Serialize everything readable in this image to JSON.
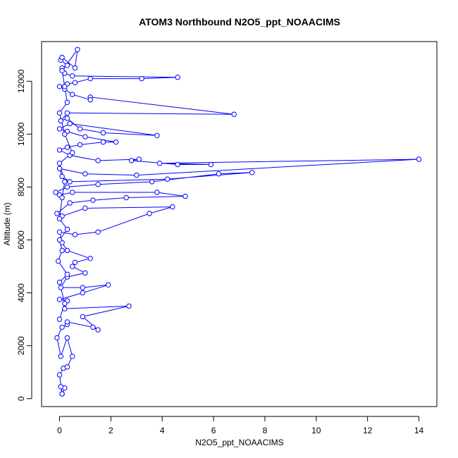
{
  "chart_data": {
    "type": "scatter",
    "title": "ATOM3 Northbound N2O5_ppt_NOAACIMS",
    "xlabel": "N2O5_ppt_NOAACIMS",
    "ylabel": "Altitude (m)",
    "xlim": [
      -0.7,
      14.7
    ],
    "ylim": [
      -300,
      13500
    ],
    "x_ticks": [
      0,
      2,
      4,
      6,
      8,
      10,
      12,
      14
    ],
    "y_ticks": [
      0,
      2000,
      4000,
      6000,
      8000,
      10000,
      12000
    ],
    "x_tick_labels": [
      "0",
      "2",
      "4",
      "6",
      "8",
      "10",
      "12",
      "14"
    ],
    "y_tick_labels": [
      "0",
      "2000",
      "4000",
      "6000",
      "8000",
      "10000",
      "12000"
    ],
    "grid": false,
    "markers": "open-circle",
    "connected": true,
    "color": "#0000ff",
    "series": [
      {
        "values": [
          [
            0.1,
            180
          ],
          [
            0.2,
            400
          ],
          [
            0.05,
            450
          ],
          [
            0.1,
            180
          ],
          [
            0.0,
            900
          ],
          [
            0.15,
            1150
          ],
          [
            0.3,
            1200
          ],
          [
            0.5,
            1600
          ],
          [
            0.3,
            2300
          ],
          [
            0.05,
            1600
          ],
          [
            -0.1,
            2300
          ],
          [
            0.1,
            2700
          ],
          [
            0.3,
            2800
          ],
          [
            0.3,
            2900
          ],
          [
            1.3,
            2700
          ],
          [
            1.5,
            2600
          ],
          [
            0.9,
            3100
          ],
          [
            2.7,
            3500
          ],
          [
            0.2,
            3400
          ],
          [
            0.3,
            3700
          ],
          [
            0.0,
            3750
          ],
          [
            0.9,
            4000
          ],
          [
            1.9,
            4300
          ],
          [
            0.9,
            4200
          ],
          [
            0.05,
            4200
          ],
          [
            0.3,
            4600
          ],
          [
            1.0,
            4750
          ],
          [
            0.5,
            5000
          ],
          [
            0.6,
            5150
          ],
          [
            1.2,
            5300
          ],
          [
            0.3,
            5600
          ],
          [
            0.1,
            5900
          ],
          [
            0.0,
            6300
          ],
          [
            0.6,
            6200
          ],
          [
            1.5,
            6300
          ],
          [
            3.5,
            7000
          ],
          [
            4.4,
            7250
          ],
          [
            1.0,
            7200
          ],
          [
            0.1,
            6900
          ],
          [
            -0.1,
            7000
          ],
          [
            0.4,
            7400
          ],
          [
            1.3,
            7500
          ],
          [
            2.6,
            7600
          ],
          [
            4.9,
            7650
          ],
          [
            3.8,
            7800
          ],
          [
            0.5,
            7800
          ],
          [
            0.0,
            7700
          ],
          [
            -0.15,
            7800
          ],
          [
            0.3,
            8000
          ],
          [
            1.5,
            8100
          ],
          [
            3.6,
            8200
          ],
          [
            6.2,
            8500
          ],
          [
            7.5,
            8550
          ],
          [
            4.2,
            8300
          ],
          [
            0.4,
            8200
          ],
          [
            0.1,
            8400
          ],
          [
            0.0,
            8700
          ],
          [
            1.0,
            8500
          ],
          [
            3.0,
            8450
          ],
          [
            14.0,
            9050
          ],
          [
            3.9,
            8900
          ],
          [
            5.9,
            8850
          ],
          [
            4.6,
            8850
          ],
          [
            2.8,
            9000
          ],
          [
            3.1,
            9050
          ],
          [
            1.5,
            9000
          ],
          [
            0.4,
            9200
          ],
          [
            0.0,
            9400
          ],
          [
            0.3,
            9500
          ],
          [
            0.8,
            9600
          ],
          [
            1.7,
            9700
          ],
          [
            2.2,
            9700
          ],
          [
            1.0,
            9900
          ],
          [
            0.3,
            10100
          ],
          [
            0.0,
            10200
          ],
          [
            0.4,
            10400
          ],
          [
            3.8,
            9950
          ],
          [
            1.7,
            10050
          ],
          [
            0.8,
            10200
          ],
          [
            0.3,
            10600
          ],
          [
            0.05,
            10500
          ],
          [
            0.3,
            10800
          ],
          [
            6.8,
            10750
          ],
          [
            1.2,
            11400
          ],
          [
            1.2,
            11300
          ],
          [
            0.5,
            11500
          ],
          [
            0.2,
            11700
          ],
          [
            0.0,
            11800
          ],
          [
            0.3,
            11900
          ],
          [
            0.6,
            11950
          ],
          [
            1.2,
            12100
          ],
          [
            3.2,
            12100
          ],
          [
            4.6,
            12150
          ],
          [
            0.5,
            12200
          ],
          [
            0.2,
            12300
          ],
          [
            0.1,
            12500
          ],
          [
            0.3,
            12600
          ],
          [
            0.05,
            12800
          ],
          [
            0.1,
            12900
          ],
          [
            0.6,
            12500
          ],
          [
            0.7,
            13200
          ],
          [
            0.1,
            12400
          ],
          [
            0.2,
            11800
          ],
          [
            0.3,
            11200
          ],
          [
            0.0,
            10800
          ],
          [
            0.2,
            10000
          ],
          [
            0.5,
            9300
          ],
          [
            0.0,
            8900
          ],
          [
            0.2,
            8200
          ],
          [
            0.1,
            7600
          ],
          [
            0.0,
            6800
          ],
          [
            0.3,
            6400
          ],
          [
            0.0,
            6000
          ],
          [
            0.1,
            5600
          ],
          [
            -0.05,
            5200
          ],
          [
            0.3,
            4700
          ],
          [
            0.0,
            4400
          ],
          [
            0.2,
            3600
          ],
          [
            0.0,
            3000
          ]
        ]
      }
    ]
  }
}
